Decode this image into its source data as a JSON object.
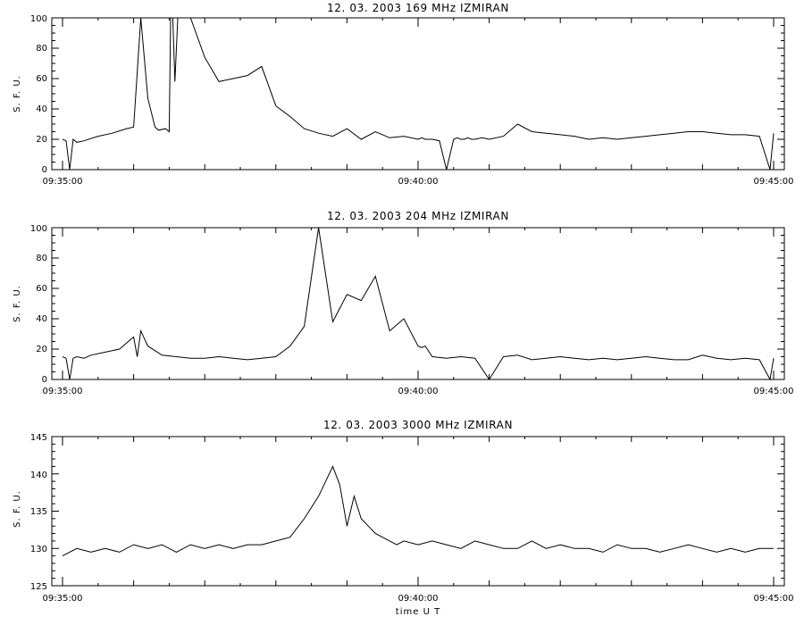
{
  "chart_data": [
    {
      "type": "line",
      "title": "12.  03.  2003    169 MHz    IZMIRAN",
      "ylabel": "S. F. U.",
      "xlabel": "",
      "ylim": [
        0,
        100
      ],
      "yticks": [
        "0",
        "20",
        "40",
        "60",
        "80",
        "100"
      ],
      "xticks": [
        "09:35:00",
        "09:40:00",
        "09:45:00"
      ],
      "xlim_min": [
        0,
        10
      ],
      "grid": false,
      "series": [
        {
          "x": [
            0,
            0.05,
            0.1,
            0.15,
            0.2,
            0.3,
            0.5,
            0.7,
            0.9,
            1.0,
            1.1,
            1.2,
            1.3,
            1.35,
            1.45,
            1.5,
            1.52,
            1.55,
            1.58,
            1.62,
            1.7,
            1.8,
            2.0,
            2.2,
            2.4,
            2.6,
            2.8,
            3.0,
            3.2,
            3.4,
            3.6,
            3.8,
            4.0,
            4.2,
            4.4,
            4.6,
            4.8,
            5.0,
            5.05,
            5.1,
            5.2,
            5.3,
            5.4,
            5.5,
            5.55,
            5.6,
            5.65,
            5.7,
            5.75,
            5.8,
            5.9,
            6.0,
            6.2,
            6.4,
            6.6,
            6.8,
            7.0,
            7.2,
            7.4,
            7.6,
            7.8,
            8.0,
            8.2,
            8.4,
            8.6,
            8.8,
            9.0,
            9.2,
            9.4,
            9.6,
            9.8,
            9.95,
            10.0
          ],
          "y": [
            20,
            19,
            0,
            20,
            18,
            19,
            22,
            24,
            27,
            28,
            100,
            47,
            28,
            26,
            27,
            25,
            100,
            100,
            58,
            100,
            100,
            100,
            74,
            58,
            60,
            62,
            68,
            42,
            35,
            27,
            24,
            22,
            27,
            20,
            25,
            21,
            22,
            20,
            21,
            20,
            20,
            19,
            0,
            20,
            21,
            20,
            20,
            21,
            20,
            20,
            21,
            20,
            22,
            30,
            25,
            24,
            23,
            22,
            20,
            21,
            20,
            21,
            22,
            23,
            24,
            25,
            25,
            24,
            23,
            23,
            22,
            0,
            24
          ]
        }
      ]
    },
    {
      "type": "line",
      "title": "12.  03.  2003    204 MHz    IZMIRAN",
      "ylabel": "S. F. U.",
      "xlabel": "",
      "ylim": [
        0,
        100
      ],
      "yticks": [
        "0",
        "20",
        "40",
        "60",
        "80",
        "100"
      ],
      "xticks": [
        "09:35:00",
        "09:40:00",
        "09:45:00"
      ],
      "xlim_min": [
        0,
        10
      ],
      "grid": false,
      "series": [
        {
          "x": [
            0,
            0.05,
            0.1,
            0.15,
            0.2,
            0.3,
            0.4,
            0.6,
            0.8,
            1.0,
            1.05,
            1.1,
            1.2,
            1.4,
            1.6,
            1.8,
            2.0,
            2.2,
            2.4,
            2.6,
            2.8,
            3.0,
            3.2,
            3.4,
            3.6,
            3.8,
            4.0,
            4.2,
            4.4,
            4.6,
            4.8,
            5.0,
            5.05,
            5.1,
            5.2,
            5.4,
            5.6,
            5.8,
            6.0,
            6.2,
            6.4,
            6.6,
            6.8,
            7.0,
            7.2,
            7.4,
            7.6,
            7.8,
            8.0,
            8.2,
            8.4,
            8.6,
            8.8,
            9.0,
            9.2,
            9.4,
            9.6,
            9.8,
            9.95,
            10.0
          ],
          "y": [
            15,
            14,
            0,
            14,
            15,
            14,
            16,
            18,
            20,
            28,
            15,
            32,
            22,
            16,
            15,
            14,
            14,
            15,
            14,
            13,
            14,
            15,
            22,
            35,
            100,
            38,
            56,
            52,
            68,
            32,
            40,
            22,
            21,
            22,
            15,
            14,
            15,
            14,
            0,
            15,
            16,
            13,
            14,
            15,
            14,
            13,
            14,
            13,
            14,
            15,
            14,
            13,
            13,
            16,
            14,
            13,
            14,
            13,
            0,
            14
          ]
        }
      ]
    },
    {
      "type": "line",
      "title": "12.  03.  2003    3000 MHz    IZMIRAN",
      "ylabel": "S. F. U.",
      "xlabel": "time  U T",
      "ylim": [
        125,
        145
      ],
      "yticks": [
        "125",
        "130",
        "135",
        "140",
        "145"
      ],
      "xticks": [
        "09:35:00",
        "09:40:00",
        "09:45:00"
      ],
      "xlim_min": [
        0,
        10
      ],
      "grid": false,
      "series": [
        {
          "x": [
            0,
            0.2,
            0.4,
            0.6,
            0.8,
            1.0,
            1.2,
            1.4,
            1.6,
            1.8,
            2.0,
            2.2,
            2.4,
            2.6,
            2.8,
            3.0,
            3.2,
            3.4,
            3.6,
            3.8,
            3.9,
            4.0,
            4.1,
            4.2,
            4.3,
            4.4,
            4.5,
            4.6,
            4.7,
            4.8,
            5.0,
            5.2,
            5.4,
            5.6,
            5.8,
            6.0,
            6.2,
            6.4,
            6.6,
            6.8,
            7.0,
            7.2,
            7.4,
            7.6,
            7.8,
            8.0,
            8.2,
            8.4,
            8.6,
            8.8,
            9.0,
            9.2,
            9.4,
            9.6,
            9.8,
            10.0
          ],
          "y": [
            129,
            130,
            129.5,
            130,
            129.5,
            130.5,
            130,
            130.5,
            129.5,
            130.5,
            130,
            130.5,
            130,
            130.5,
            130.5,
            131,
            131.5,
            134,
            137,
            141,
            138.5,
            133,
            137,
            134,
            133,
            132,
            131.5,
            131,
            130.5,
            131,
            130.5,
            131,
            130.5,
            130,
            131,
            130.5,
            130,
            130,
            131,
            130,
            130.5,
            130,
            130,
            129.5,
            130.5,
            130,
            130,
            129.5,
            130,
            130.5,
            130,
            129.5,
            130,
            129.5,
            130,
            130
          ]
        }
      ]
    }
  ]
}
